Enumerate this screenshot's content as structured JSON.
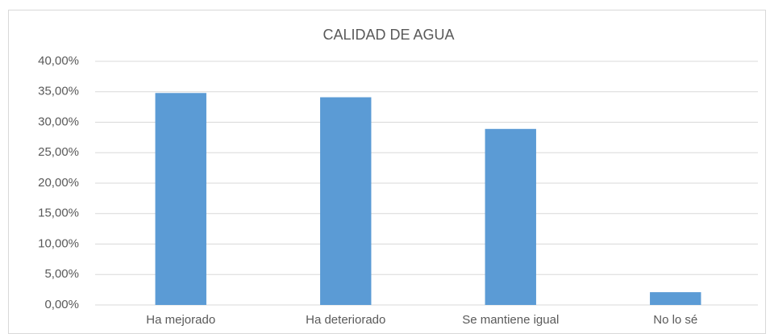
{
  "chart_data": {
    "type": "bar",
    "title": "CALIDAD DE AGUA",
    "categories": [
      "Ha mejorado",
      "Ha deteriorado",
      "Se mantiene igual",
      "No lo sé"
    ],
    "values": [
      34.8,
      34.1,
      28.9,
      2.1
    ],
    "color": "#5b9bd5",
    "ylim": [
      0,
      40
    ],
    "yticks": [
      {
        "value": 0,
        "label": "0,00%"
      },
      {
        "value": 5,
        "label": "5,00%"
      },
      {
        "value": 10,
        "label": "10,00%"
      },
      {
        "value": 15,
        "label": "15,00%"
      },
      {
        "value": 20,
        "label": "20,00%"
      },
      {
        "value": 25,
        "label": "25,00%"
      },
      {
        "value": 30,
        "label": "30,00%"
      },
      {
        "value": 35,
        "label": "35,00%"
      },
      {
        "value": 40,
        "label": "40,00%"
      }
    ],
    "grid": true
  }
}
